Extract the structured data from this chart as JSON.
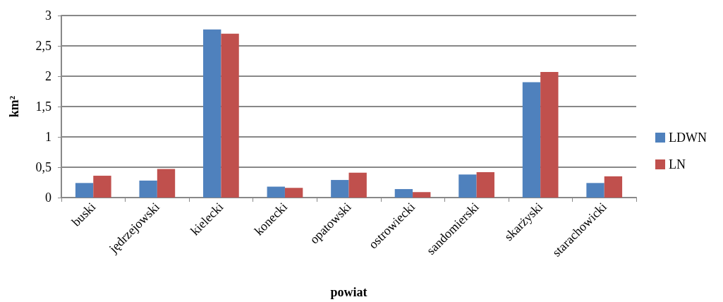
{
  "chart_data": {
    "type": "bar",
    "xlabel": "powiat",
    "ylabel": "km²",
    "categories": [
      "buski",
      "jędrzejowski",
      "kielecki",
      "konecki",
      "opatowski",
      "ostrowiecki",
      "sandomierski",
      "skarżyski",
      "starachowicki"
    ],
    "series": [
      {
        "name": "LDWN",
        "color": "#4f81bd",
        "values": [
          0.24,
          0.28,
          2.77,
          0.18,
          0.29,
          0.14,
          0.38,
          1.9,
          0.24
        ]
      },
      {
        "name": "LN",
        "color": "#c0504d",
        "values": [
          0.36,
          0.47,
          2.7,
          0.16,
          0.41,
          0.09,
          0.42,
          2.07,
          0.35
        ]
      }
    ],
    "ylim": [
      0,
      3
    ],
    "yticks": [
      0,
      {
        "value": 0.5,
        "label": "0,5"
      },
      1,
      {
        "value": 1.5,
        "label": "1,5"
      },
      2,
      {
        "value": 2.5,
        "label": "2,5"
      },
      3
    ],
    "grid": "y",
    "legend": "right"
  }
}
